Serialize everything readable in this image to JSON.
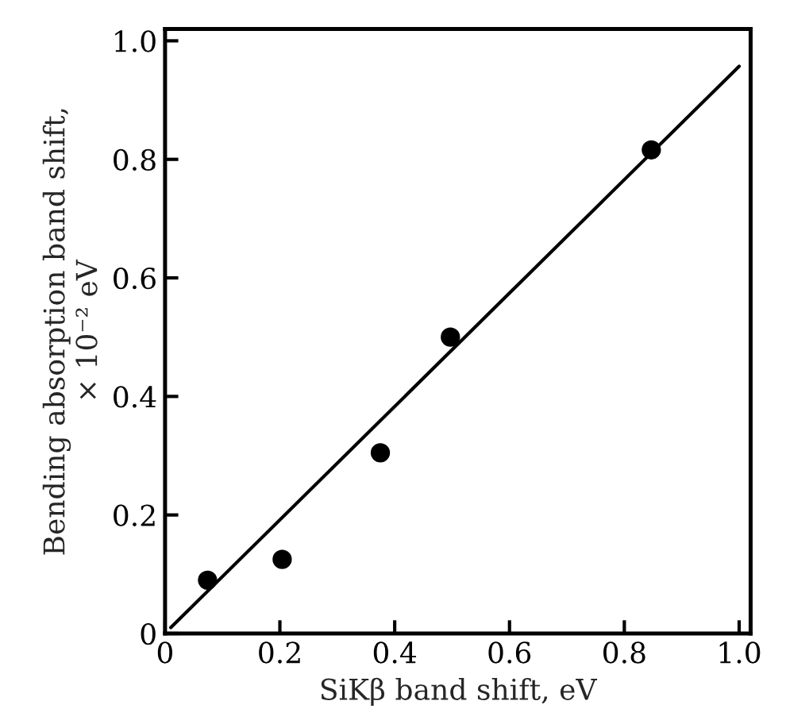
{
  "chart_data": {
    "type": "scatter",
    "xlabel": "SiKβ band shift, eV",
    "ylabel": "Bending absorption band shift,\n× 10⁻² eV",
    "series": [
      {
        "color": "#000000",
        "x": [
          0.074,
          0.204,
          0.375,
          0.497,
          0.847
        ],
        "values": [
          0.09,
          0.125,
          0.305,
          0.5,
          0.816
        ],
        "marker": "circle"
      },
      {
        "type": "line",
        "color": "#000000",
        "x": [
          0.01,
          1.0
        ],
        "values": [
          0.01,
          0.957
        ],
        "marker": "none",
        "line_style": "solid"
      }
    ],
    "xlim": [
      0,
      1.02
    ],
    "ylim": [
      0,
      1.02
    ],
    "xticks": [
      0,
      0.2,
      0.4,
      0.6,
      0.8,
      {
        "value": 1,
        "label": "1.0"
      }
    ],
    "yticks": [
      0,
      0.2,
      0.4,
      0.6,
      0.8,
      {
        "value": 1,
        "label": "1.0"
      }
    ],
    "grid": false,
    "legend": false
  }
}
